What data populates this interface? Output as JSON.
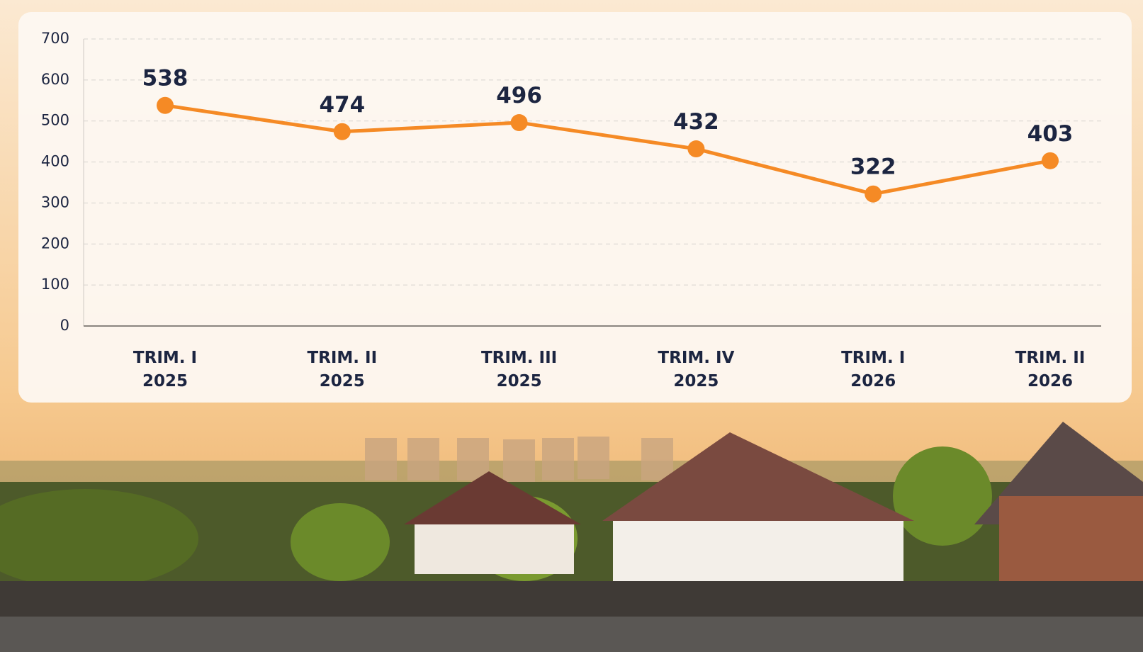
{
  "chart_data": {
    "type": "line",
    "categories": [
      [
        "TRIM. I",
        "2025"
      ],
      [
        "TRIM. II",
        "2025"
      ],
      [
        "TRIM. III",
        "2025"
      ],
      [
        "TRIM. IV",
        "2025"
      ],
      [
        "TRIM. I",
        "2026"
      ],
      [
        "TRIM. II",
        "2026"
      ]
    ],
    "series": [
      {
        "color": "#f58a25",
        "values": [
          538,
          474,
          496,
          432,
          322,
          403
        ]
      }
    ],
    "ylim": [
      0,
      700
    ],
    "yticks": [
      0,
      100,
      200,
      300,
      400,
      500,
      600,
      700
    ],
    "grid": true
  }
}
